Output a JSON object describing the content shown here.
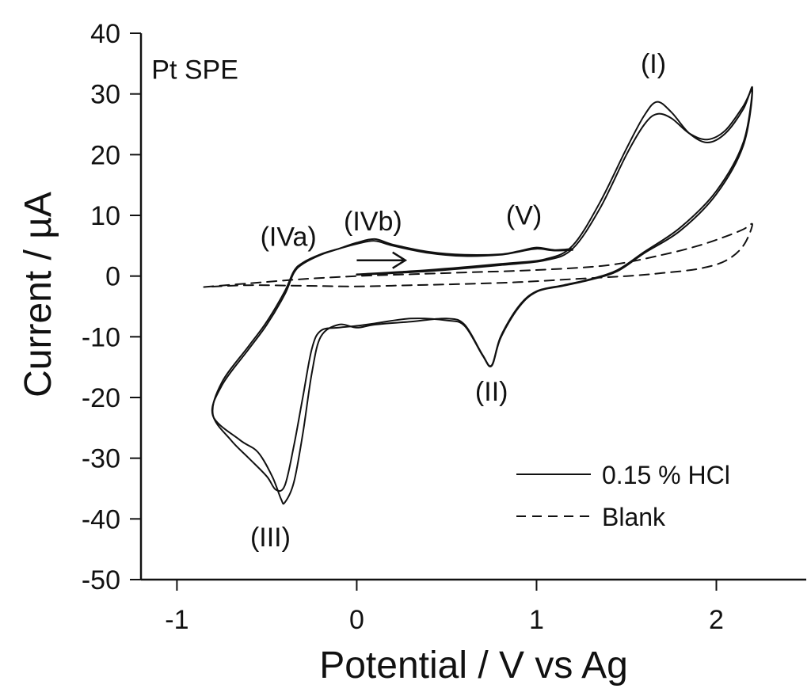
{
  "chart_data": {
    "type": "line",
    "title": "",
    "xlabel": "Potential / V vs Ag",
    "ylabel": "Current / µA",
    "xlim": [
      -1.2,
      2.5
    ],
    "ylim": [
      -50,
      40
    ],
    "xticks": [
      -1,
      0,
      1,
      2
    ],
    "xtick_labels": [
      "-1",
      "0",
      "1",
      "2"
    ],
    "yticks": [
      40,
      30,
      20,
      10,
      0,
      -10,
      -20,
      -30,
      -40,
      -50
    ],
    "ytick_labels": [
      "40",
      "30",
      "20",
      "10",
      "0",
      "-10",
      "-20",
      "-30",
      "-40",
      "-50"
    ],
    "grid": false,
    "legend_position": "bottom-right",
    "annotations": [
      {
        "text": "Pt SPE",
        "x": -0.9,
        "y": 32.5
      },
      {
        "text": "(I)",
        "x": 1.65,
        "y": 33.5
      },
      {
        "text": "(II)",
        "x": 0.75,
        "y": -20.5
      },
      {
        "text": "(III)",
        "x": -0.48,
        "y": -44.5
      },
      {
        "text": "(IVa)",
        "x": -0.38,
        "y": 5
      },
      {
        "text": "(IVb)",
        "x": 0.09,
        "y": 7.5
      },
      {
        "text": "(V)",
        "x": 0.93,
        "y": 8.5
      }
    ],
    "arrow": {
      "from": [
        0.0,
        2.6
      ],
      "to": [
        0.27,
        2.6
      ]
    },
    "series": [
      {
        "name": "0.15 % HCl",
        "style": "solid",
        "cycles": [
          {
            "x": [
              0.0,
              0.4,
              0.8,
              1.05,
              1.2,
              1.35,
              1.5,
              1.6,
              1.67,
              1.75,
              1.85,
              1.95,
              2.05,
              2.15,
              2.2,
              2.15,
              2.0,
              1.8,
              1.6,
              1.45,
              1.3,
              1.15,
              1.0,
              0.9,
              0.8,
              0.75,
              0.7,
              0.6,
              0.5,
              0.3,
              0.1,
              0.0,
              -0.1,
              -0.2,
              -0.25,
              -0.3,
              -0.35,
              -0.4,
              -0.42,
              -0.47,
              -0.55,
              -0.65,
              -0.8,
              -0.75,
              -0.6,
              -0.5,
              -0.4,
              -0.35,
              -0.3,
              -0.2,
              -0.1,
              0.0,
              0.1,
              0.2,
              0.4,
              0.6,
              0.8,
              0.9,
              1.0,
              1.1,
              1.2
            ],
            "y": [
              0.3,
              1.0,
              2.0,
              2.8,
              5.0,
              12.0,
              21.0,
              26.5,
              28.7,
              27.0,
              23.5,
              22.0,
              23.5,
              27.5,
              31.0,
              22.0,
              14.0,
              8.0,
              4.0,
              1.0,
              -0.5,
              -1.5,
              -2.5,
              -5.0,
              -10.0,
              -14.7,
              -13.0,
              -8.0,
              -7.0,
              -7.5,
              -8.0,
              -8.5,
              -8.0,
              -10.0,
              -16.0,
              -26.0,
              -34.0,
              -37.3,
              -36.8,
              -33.0,
              -29.0,
              -27.0,
              -23.0,
              -18.0,
              -12.0,
              -8.0,
              -3.0,
              0.5,
              2.0,
              3.5,
              4.5,
              5.5,
              6.1,
              5.2,
              4.0,
              3.5,
              3.6,
              4.1,
              4.7,
              4.3,
              4.5
            ]
          },
          {
            "x": [
              0.0,
              0.4,
              0.8,
              1.05,
              1.2,
              1.35,
              1.5,
              1.6,
              1.67,
              1.75,
              1.85,
              1.95,
              2.05,
              2.15,
              2.2,
              2.15,
              2.0,
              1.8,
              1.6,
              1.45,
              1.3,
              1.15,
              1.0,
              0.9,
              0.8,
              0.75,
              0.7,
              0.6,
              0.5,
              0.3,
              0.1,
              0.0,
              -0.1,
              -0.2,
              -0.25,
              -0.3,
              -0.35,
              -0.4,
              -0.45,
              -0.5,
              -0.6,
              -0.7,
              -0.8,
              -0.75,
              -0.6,
              -0.5,
              -0.4,
              -0.35,
              -0.3,
              -0.2,
              -0.1,
              0.0,
              0.1,
              0.2,
              0.4,
              0.6,
              0.8,
              0.9,
              1.0,
              1.1,
              1.2
            ],
            "y": [
              0.2,
              0.8,
              1.8,
              2.6,
              4.5,
              11.0,
              20.0,
              25.0,
              26.7,
              26.0,
              23.5,
              22.5,
              24.0,
              28.0,
              30.5,
              21.5,
              13.5,
              7.5,
              3.8,
              0.8,
              -0.6,
              -1.6,
              -2.6,
              -5.2,
              -10.2,
              -14.8,
              -13.1,
              -8.2,
              -7.3,
              -7.0,
              -7.8,
              -8.2,
              -8.5,
              -9.0,
              -12.0,
              -20.0,
              -28.0,
              -34.5,
              -35.2,
              -33.0,
              -30.0,
              -27.0,
              -22.8,
              -17.5,
              -11.5,
              -7.5,
              -2.5,
              0.8,
              2.2,
              3.6,
              4.5,
              5.3,
              5.8,
              5.0,
              3.8,
              3.3,
              3.5,
              4.0,
              4.5,
              4.2,
              4.3
            ]
          }
        ]
      },
      {
        "name": "Blank",
        "style": "dashed",
        "cycles": [
          {
            "x": [
              -0.85,
              -0.6,
              -0.3,
              0.0,
              0.3,
              0.6,
              1.0,
              1.4,
              1.7,
              1.9,
              2.05,
              2.15,
              2.2,
              2.15,
              2.05,
              1.9,
              1.7,
              1.5,
              1.2,
              0.9,
              0.6,
              0.3,
              0.0,
              -0.3,
              -0.6,
              -0.85
            ],
            "y": [
              -1.8,
              -1.2,
              -0.5,
              0.0,
              0.3,
              0.6,
              1.0,
              1.8,
              3.5,
              5.0,
              6.5,
              7.7,
              8.5,
              5.0,
              2.5,
              1.2,
              0.5,
              0.0,
              -0.5,
              -1.0,
              -1.3,
              -1.5,
              -1.7,
              -1.6,
              -1.5,
              -1.8
            ]
          }
        ]
      }
    ]
  }
}
